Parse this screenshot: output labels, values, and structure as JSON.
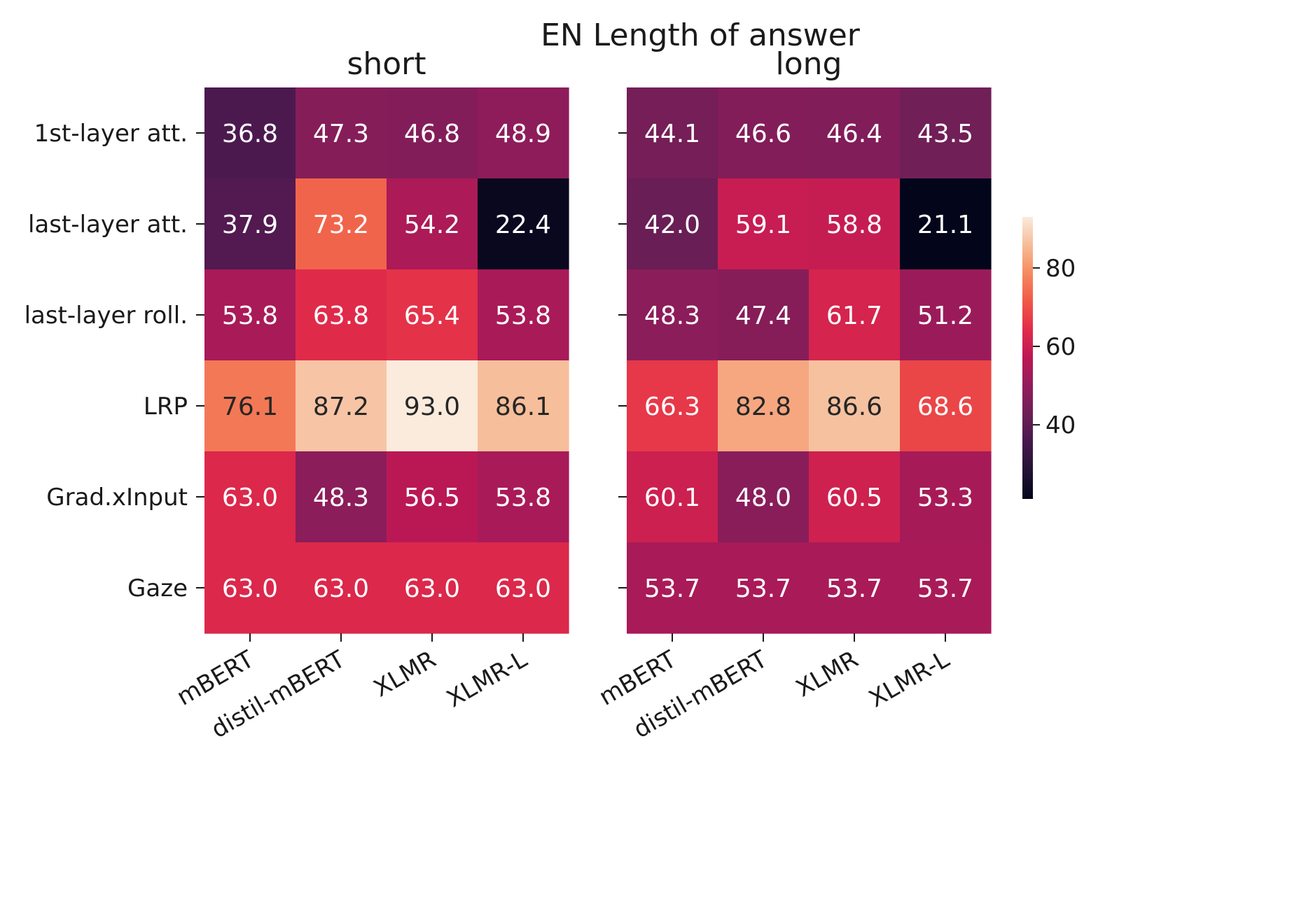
{
  "chart_data": {
    "type": "heatmap",
    "title": "EN Length of answer",
    "rows": [
      "1st-layer att.",
      "last-layer att.",
      "last-layer roll.",
      "LRP",
      "Grad.xInput",
      "Gaze"
    ],
    "columns": [
      "mBERT",
      "distil-mBERT",
      "XLMR",
      "XLMR-L"
    ],
    "panels": [
      {
        "name": "short",
        "values": [
          [
            36.8,
            47.3,
            46.8,
            48.9
          ],
          [
            37.9,
            73.2,
            54.2,
            22.4
          ],
          [
            53.8,
            63.8,
            65.4,
            53.8
          ],
          [
            76.1,
            87.2,
            93.0,
            86.1
          ],
          [
            63.0,
            48.3,
            56.5,
            53.8
          ],
          [
            63.0,
            63.0,
            63.0,
            63.0
          ]
        ]
      },
      {
        "name": "long",
        "values": [
          [
            44.1,
            46.6,
            46.4,
            43.5
          ],
          [
            42.0,
            59.1,
            58.8,
            21.1
          ],
          [
            48.3,
            47.4,
            61.7,
            51.2
          ],
          [
            66.3,
            82.8,
            86.6,
            68.6
          ],
          [
            60.1,
            48.0,
            60.5,
            53.3
          ],
          [
            53.7,
            53.7,
            53.7,
            53.7
          ]
        ]
      }
    ],
    "colorbar": {
      "min": 21.1,
      "max": 93.0,
      "ticks": [
        40,
        60,
        80
      ],
      "colormap": "rocket"
    }
  }
}
